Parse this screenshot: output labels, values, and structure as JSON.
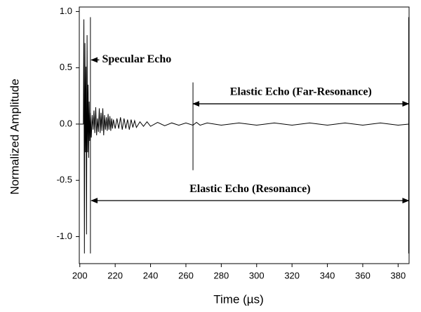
{
  "chart_data": {
    "type": "line",
    "x_label": "Time (µs)",
    "y_label": "Normalized Amplitude",
    "xlim": [
      199.7,
      386.2
    ],
    "ylim": [
      -1.24,
      1.04
    ],
    "xticks": [
      200,
      220,
      240,
      260,
      280,
      300,
      320,
      340,
      360,
      380
    ],
    "yticks": [
      {
        "value": 1,
        "label": "1.0"
      },
      {
        "value": 0.5,
        "label": "0.5"
      },
      {
        "value": 0,
        "label": "0.0"
      },
      {
        "value": -0.5,
        "label": "-0.5"
      },
      {
        "value": -1,
        "label": "-1.0"
      }
    ],
    "series": [
      {
        "color": "#000000",
        "x": [
          200,
          201.5,
          202,
          202.3,
          202.6,
          202.9,
          203.2,
          203.5,
          203.8,
          204.1,
          204.4,
          204.7,
          205,
          205.3,
          205.6,
          206,
          206.5,
          207,
          207.5,
          208,
          208.5,
          209,
          209.5,
          210,
          210.5,
          211,
          211.5,
          212,
          212.5,
          213,
          213.5,
          214,
          214.5,
          215,
          215.5,
          216,
          216.5,
          217,
          217.5,
          218,
          218.5,
          219,
          220,
          221,
          222,
          223,
          224,
          225,
          226,
          227,
          228,
          229,
          230,
          231,
          232,
          234,
          236,
          238,
          240,
          244,
          248,
          252,
          256,
          260,
          264,
          266,
          268,
          272,
          280,
          290,
          300,
          310,
          320,
          330,
          340,
          350,
          360,
          370,
          380,
          386
        ],
        "values": [
          0,
          0,
          0,
          0.93,
          -1.15,
          0.72,
          -0.25,
          0.51,
          -0.98,
          0.79,
          -0.25,
          0.35,
          -0.3,
          0.2,
          -0.15,
          0.1,
          -0.12,
          0.08,
          -0.05,
          0.12,
          -0.08,
          0.15,
          -0.1,
          0.05,
          -0.07,
          0.14,
          -0.08,
          0.1,
          -0.06,
          0.14,
          -0.1,
          0.08,
          -0.05,
          0.06,
          -0.06,
          0.09,
          -0.05,
          0.07,
          -0.06,
          0.05,
          -0.04,
          0.04,
          -0.04,
          0.05,
          -0.04,
          0.06,
          -0.05,
          0.05,
          -0.04,
          0.04,
          -0.05,
          0.04,
          -0.03,
          0.03,
          -0.03,
          0.02,
          -0.02,
          0.02,
          -0.02,
          0.015,
          -0.015,
          0.01,
          -0.01,
          0.01,
          -0.01,
          0.015,
          -0.01,
          0.01,
          -0.01,
          0.01,
          -0.01,
          0.01,
          -0.01,
          0.01,
          -0.01,
          0.01,
          -0.01,
          0.01,
          -0.01,
          0
        ]
      }
    ],
    "markers": [
      {
        "x": 206,
        "y": [
          0.95,
          -1.15
        ]
      },
      {
        "x": 264,
        "y": [
          0.37,
          -0.41
        ]
      },
      {
        "x": 386,
        "y": [
          0.95,
          -1.15
        ]
      }
    ],
    "annotations": [
      {
        "text": "Specular Echo",
        "x": [
          211,
          206.5
        ],
        "y": 0.57
      },
      {
        "text": "Elastic Echo (Far-Resonance)",
        "x": [
          264,
          386
        ],
        "y": 0.18
      },
      {
        "text": "Elastic Echo (Resonance)",
        "x": [
          206.5,
          386
        ],
        "y": -0.68
      }
    ]
  }
}
